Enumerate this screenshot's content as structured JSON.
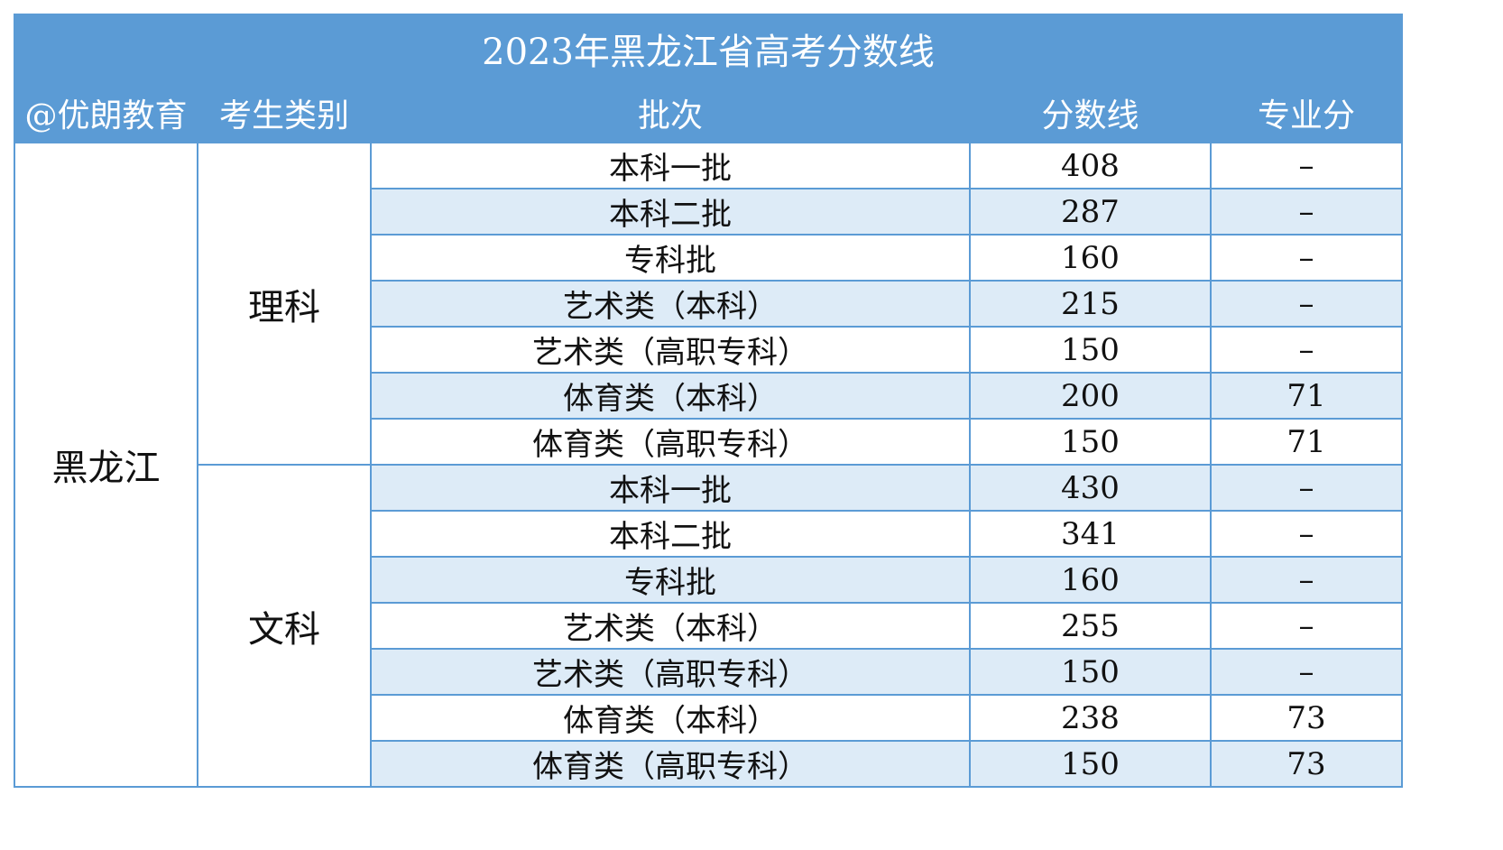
{
  "title": "2023年黑龙江省高考分数线",
  "headers": {
    "watermark": "@优朗教育",
    "category": "考生类别",
    "batch": "批次",
    "score": "分数线",
    "major": "专业分"
  },
  "province": "黑龙江",
  "groups": [
    {
      "category": "理科",
      "rows": [
        {
          "batch": "本科一批",
          "score": "408",
          "major": "–"
        },
        {
          "batch": "本科二批",
          "score": "287",
          "major": "–"
        },
        {
          "batch": "专科批",
          "score": "160",
          "major": "–"
        },
        {
          "batch": "艺术类（本科）",
          "score": "215",
          "major": "–"
        },
        {
          "batch": "艺术类（高职专科）",
          "score": "150",
          "major": "–"
        },
        {
          "batch": "体育类（本科）",
          "score": "200",
          "major": "71"
        },
        {
          "batch": "体育类（高职专科）",
          "score": "150",
          "major": "71"
        }
      ]
    },
    {
      "category": "文科",
      "rows": [
        {
          "batch": "本科一批",
          "score": "430",
          "major": "–"
        },
        {
          "batch": "本科二批",
          "score": "341",
          "major": "–"
        },
        {
          "batch": "专科批",
          "score": "160",
          "major": "–"
        },
        {
          "batch": "艺术类（本科）",
          "score": "255",
          "major": "–"
        },
        {
          "batch": "艺术类（高职专科）",
          "score": "150",
          "major": "–"
        },
        {
          "batch": "体育类（本科）",
          "score": "238",
          "major": "73"
        },
        {
          "batch": "体育类（高职专科）",
          "score": "150",
          "major": "73"
        }
      ]
    }
  ]
}
